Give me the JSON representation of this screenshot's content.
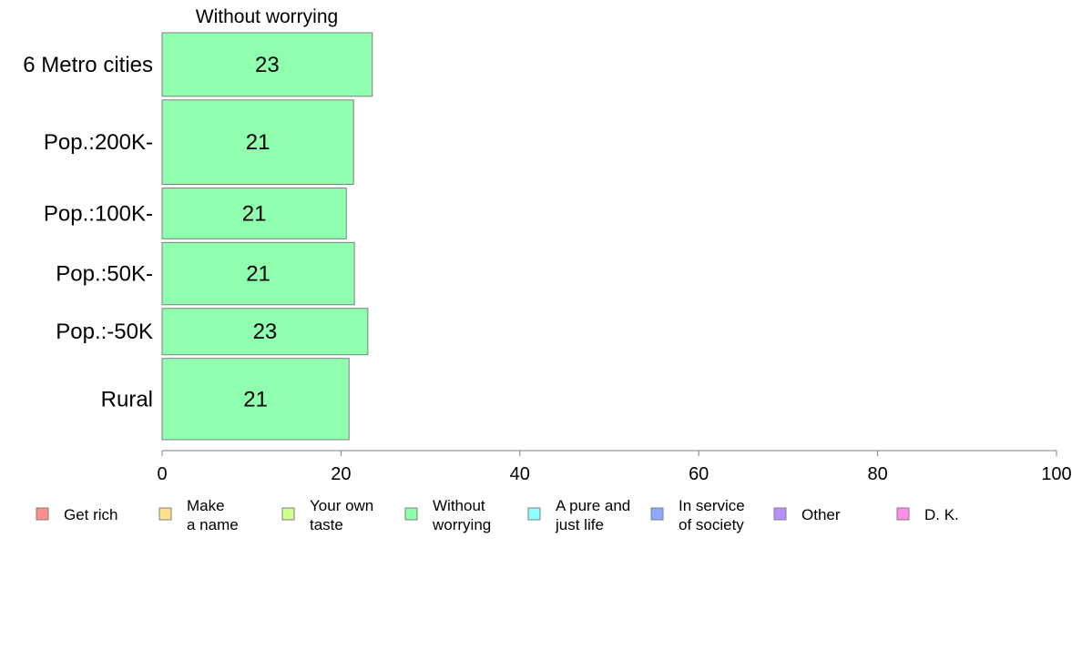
{
  "chart_data": {
    "type": "bar",
    "orientation": "horizontal",
    "title": "Without worrying",
    "categories": [
      "6 Metro cities",
      "Pop.:200K-",
      "Pop.:100K-",
      "Pop.:50K-",
      "Pop.:-50K",
      "Rural"
    ],
    "values": [
      23.5,
      21.4,
      20.6,
      21.5,
      23.0,
      20.9
    ],
    "value_labels": [
      "23",
      "21",
      "21",
      "21",
      "23",
      "21"
    ],
    "bar_weights": [
      1.0,
      1.33,
      0.8,
      0.98,
      0.73,
      1.28
    ],
    "xlim": [
      0,
      100
    ],
    "xticks": [
      "0",
      "20",
      "40",
      "60",
      "80",
      "100"
    ],
    "bar_color": "#8fffaf",
    "legend": {
      "placement": "bottom",
      "items": [
        {
          "label": [
            "Get rich"
          ],
          "color": "#ff8f8f"
        },
        {
          "label": [
            "Make",
            "a name"
          ],
          "color": "#ffe08f"
        },
        {
          "label": [
            "Your own",
            "taste"
          ],
          "color": "#cfff8f"
        },
        {
          "label": [
            "Without",
            "worrying"
          ],
          "color": "#8fffaf"
        },
        {
          "label": [
            "A pure and",
            "just life"
          ],
          "color": "#8fffff"
        },
        {
          "label": [
            "In service",
            "of society"
          ],
          "color": "#8fa8ff"
        },
        {
          "label": [
            "Other"
          ],
          "color": "#b88fff"
        },
        {
          "label": [
            "D. K."
          ],
          "color": "#ff8fe8"
        }
      ]
    }
  }
}
